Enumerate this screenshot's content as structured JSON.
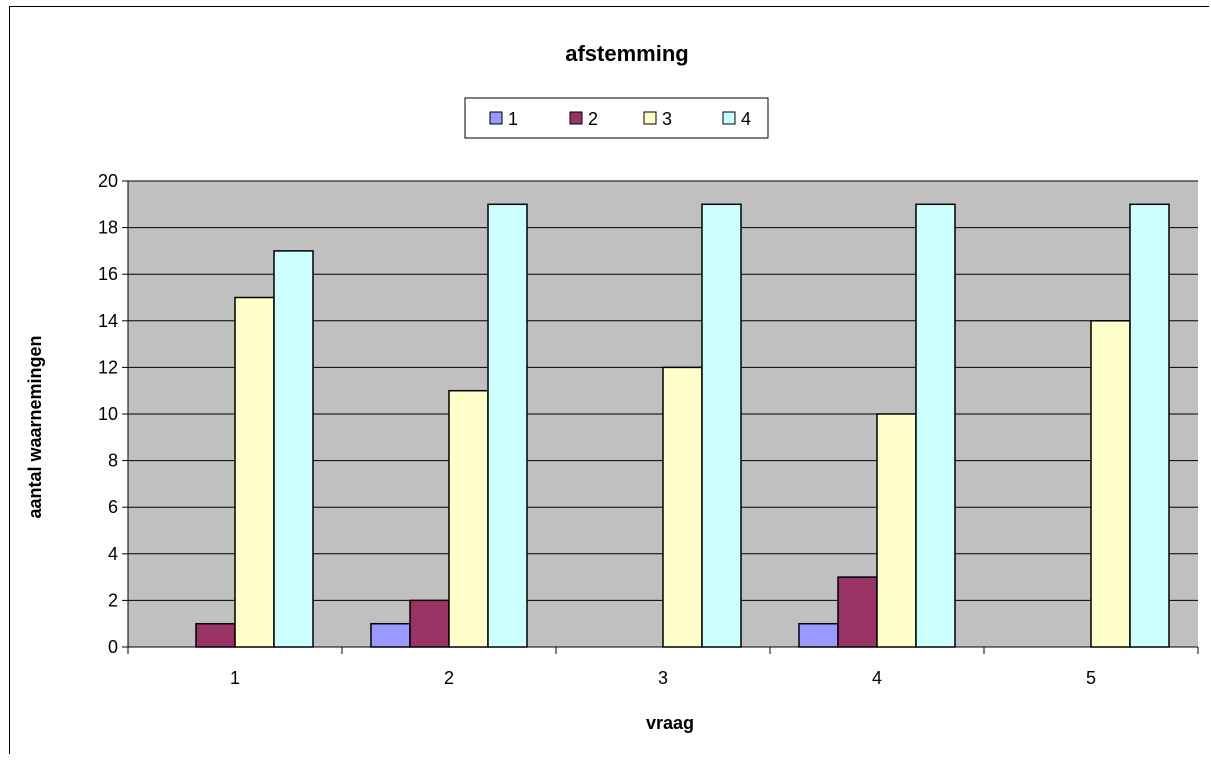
{
  "chart_data": {
    "type": "bar",
    "title": "afstemming",
    "xlabel": "vraag",
    "ylabel": "aantal waarnemingen",
    "categories": [
      "1",
      "2",
      "3",
      "4",
      "5"
    ],
    "series": [
      {
        "name": "1",
        "color": "#9999ff",
        "values": [
          0,
          1,
          0,
          1,
          0
        ]
      },
      {
        "name": "2",
        "color": "#993366",
        "values": [
          1,
          2,
          0,
          3,
          0
        ]
      },
      {
        "name": "3",
        "color": "#ffffcc",
        "values": [
          15,
          11,
          12,
          10,
          14
        ]
      },
      {
        "name": "4",
        "color": "#ccffff",
        "values": [
          17,
          19,
          19,
          19,
          19
        ]
      }
    ],
    "ylim": [
      0,
      20
    ],
    "yticks": [
      "0",
      "2",
      "4",
      "6",
      "8",
      "10",
      "12",
      "14",
      "16",
      "18",
      "20"
    ],
    "grid": true,
    "plot_background": "#c0c0c0",
    "legend_position": "top"
  }
}
